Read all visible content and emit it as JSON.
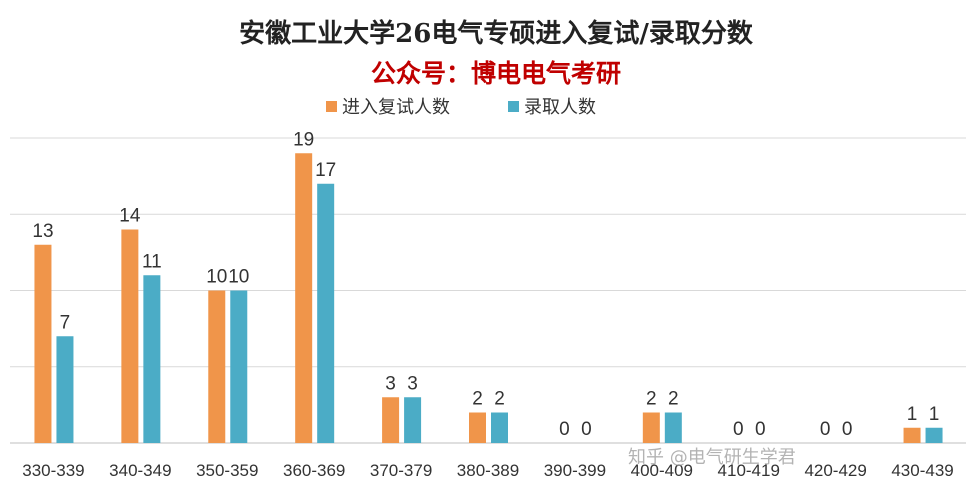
{
  "title": "安徽工业大学26电气专硕进入复试/录取分数",
  "subtitle": "公众号：博电电气考研",
  "watermark": "知乎 @电气研生学君",
  "colors": {
    "series1": "#f0954a",
    "series2": "#4bacc6",
    "subtitle": "#c00000",
    "grid": "#d9d9d9"
  },
  "chart_data": {
    "type": "bar",
    "categories": [
      "330-339",
      "340-349",
      "350-359",
      "360-369",
      "370-379",
      "380-389",
      "390-399",
      "400-409",
      "410-419",
      "420-429",
      "430-439"
    ],
    "series": [
      {
        "name": "进入复试人数",
        "values": [
          13,
          14,
          10,
          19,
          3,
          2,
          0,
          2,
          0,
          0,
          1
        ]
      },
      {
        "name": "录取人数",
        "values": [
          7,
          11,
          10,
          17,
          3,
          2,
          0,
          2,
          0,
          0,
          1
        ]
      }
    ],
    "ylim": [
      0,
      20
    ],
    "grid": true,
    "legend": "top-center"
  }
}
